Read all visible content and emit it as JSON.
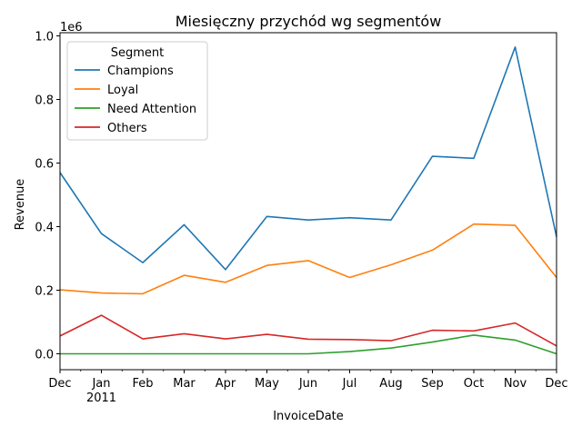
{
  "chart_data": {
    "type": "line",
    "title": "Miesięczny przychód wg segmentów",
    "xlabel": "InvoiceDate",
    "ylabel": "Revenue",
    "y_offset_label": "1e6",
    "x": [
      "2010-12",
      "2011-01",
      "2011-02",
      "2011-03",
      "2011-04",
      "2011-05",
      "2011-06",
      "2011-07",
      "2011-08",
      "2011-09",
      "2011-10",
      "2011-11",
      "2011-12"
    ],
    "x_tick_labels": [
      "Dec",
      "Jan",
      "Feb",
      "Mar",
      "Apr",
      "May",
      "Jun",
      "Jul",
      "Aug",
      "Sep",
      "Oct",
      "Nov",
      "Dec"
    ],
    "x_year_label": "2011",
    "y_ticks": [
      0.0,
      0.2,
      0.4,
      0.6,
      0.8,
      1.0
    ],
    "y_tick_labels": [
      "0.0",
      "0.2",
      "0.4",
      "0.6",
      "0.8",
      "1.0"
    ],
    "ylim": [
      -50000,
      1010000
    ],
    "grid": false,
    "legend": {
      "title": "Segment",
      "placement": "top-left"
    },
    "series": [
      {
        "name": "Champions",
        "color": "#1f77b4",
        "values": [
          570000,
          378000,
          287000,
          406000,
          265000,
          432000,
          421000,
          428000,
          421000,
          621000,
          615000,
          965000,
          368000
        ]
      },
      {
        "name": "Loyal",
        "color": "#ff7f0e",
        "values": [
          201000,
          191000,
          189000,
          247000,
          225000,
          278000,
          293000,
          240000,
          280000,
          326000,
          408000,
          404000,
          240000
        ]
      },
      {
        "name": "Need Attention",
        "color": "#2ca02c",
        "values": [
          0,
          0,
          0,
          0,
          0,
          0,
          0,
          7000,
          18000,
          37000,
          59000,
          43000,
          0
        ]
      },
      {
        "name": "Others",
        "color": "#d62728",
        "values": [
          56000,
          121000,
          47000,
          63000,
          47000,
          61000,
          46000,
          45000,
          41000,
          74000,
          72000,
          97000,
          25000
        ]
      }
    ]
  }
}
